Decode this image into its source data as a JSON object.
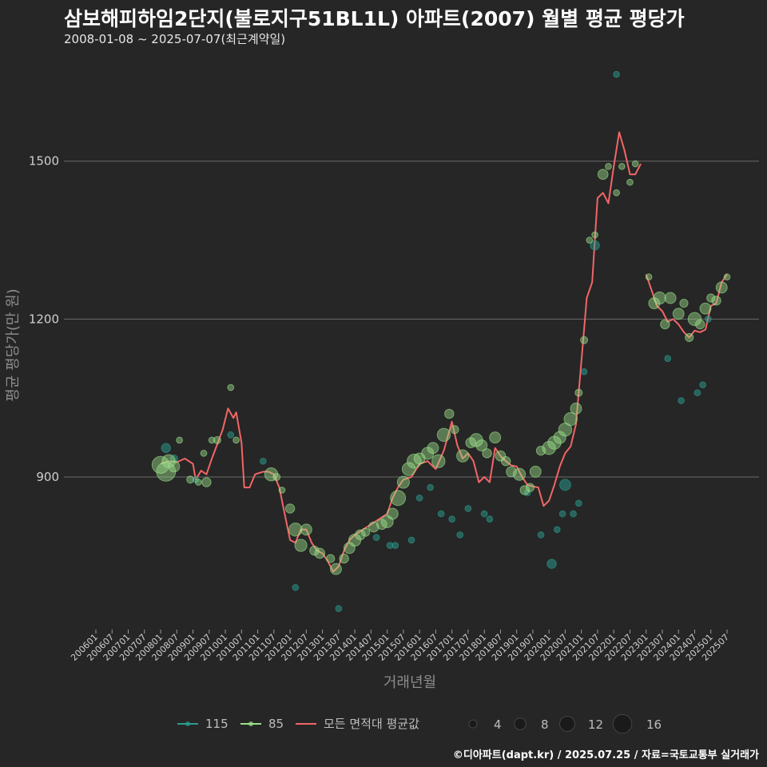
{
  "header": {
    "title": "삼보해피하임2단지(불로지구51BL1L) 아파트(2007) 월별 평균 평당가",
    "subtitle": "2008-01-08 ~ 2025-07-07(최근계약일)"
  },
  "caption": "©디아파트(dapt.kr) / 2025.07.25 / 자료=국토교통부 실거래가",
  "chart_data": {
    "type": "line+scatter",
    "title": "삼보해피하임2단지(불로지구51BL1L) 아파트(2007) 월별 평균 평당가",
    "xlabel": "거래년월",
    "ylabel": "평균 평당가(만 원)",
    "ylim": [
      610,
      1700
    ],
    "yticks": [
      900,
      1200,
      1500
    ],
    "x_start": "2006-01",
    "x_end": "2025-07",
    "xtick_labels": [
      "200601",
      "200607",
      "200701",
      "200707",
      "200801",
      "200807",
      "200901",
      "200907",
      "201001",
      "201007",
      "201101",
      "201107",
      "201201",
      "201207",
      "201301",
      "201307",
      "201401",
      "201407",
      "201501",
      "201507",
      "201601",
      "201607",
      "201701",
      "201707",
      "201801",
      "201807",
      "201901",
      "201907",
      "202001",
      "202007",
      "202101",
      "202107",
      "202201",
      "202207",
      "202301",
      "202307",
      "202401",
      "202407",
      "202501",
      "202507"
    ],
    "colors": {
      "area_115": "#2a9d8f",
      "area_85": "#9be08a",
      "average_line": "#f26666",
      "grid": "#6a6a6a"
    },
    "legend": {
      "series": [
        {
          "key": "115",
          "label": "115"
        },
        {
          "key": "85",
          "label": "85"
        },
        {
          "key": "avg",
          "label": "모든 면적대 평균값"
        }
      ],
      "sizes": [
        {
          "value": 4,
          "label": "4"
        },
        {
          "value": 8,
          "label": "8"
        },
        {
          "value": 12,
          "label": "12"
        },
        {
          "value": 16,
          "label": "16"
        }
      ]
    },
    "average_line": {
      "name": "모든 면적대 평균값",
      "points": [
        [
          "2008-01",
          925
        ],
        [
          "2008-04",
          930
        ],
        [
          "2008-07",
          928
        ],
        [
          "2008-10",
          935
        ],
        [
          "2009-01",
          925
        ],
        [
          "2009-02",
          895
        ],
        [
          "2009-04",
          912
        ],
        [
          "2009-06",
          905
        ],
        [
          "2009-08",
          935
        ],
        [
          "2009-10",
          962
        ],
        [
          "2009-12",
          990
        ],
        [
          "2010-02",
          1030
        ],
        [
          "2010-04",
          1012
        ],
        [
          "2010-05",
          1023
        ],
        [
          "2010-07",
          965
        ],
        [
          "2010-08",
          880
        ],
        [
          "2010-10",
          880
        ],
        [
          "2010-12",
          905
        ],
        [
          "2011-03",
          910
        ],
        [
          "2011-05",
          910
        ],
        [
          "2011-07",
          905
        ],
        [
          "2011-09",
          880
        ],
        [
          "2011-11",
          830
        ],
        [
          "2012-01",
          780
        ],
        [
          "2012-03",
          775
        ],
        [
          "2012-05",
          800
        ],
        [
          "2012-07",
          800
        ],
        [
          "2012-09",
          775
        ],
        [
          "2012-11",
          760
        ],
        [
          "2013-01",
          755
        ],
        [
          "2013-03",
          740
        ],
        [
          "2013-05",
          720
        ],
        [
          "2013-07",
          730
        ],
        [
          "2013-09",
          760
        ],
        [
          "2013-11",
          780
        ],
        [
          "2014-01",
          790
        ],
        [
          "2014-04",
          800
        ],
        [
          "2014-07",
          810
        ],
        [
          "2014-10",
          820
        ],
        [
          "2015-01",
          830
        ],
        [
          "2015-03",
          860
        ],
        [
          "2015-05",
          880
        ],
        [
          "2015-07",
          895
        ],
        [
          "2015-10",
          900
        ],
        [
          "2016-01",
          925
        ],
        [
          "2016-04",
          930
        ],
        [
          "2016-07",
          915
        ],
        [
          "2016-10",
          950
        ],
        [
          "2017-01",
          1005
        ],
        [
          "2017-03",
          960
        ],
        [
          "2017-05",
          935
        ],
        [
          "2017-07",
          945
        ],
        [
          "2017-09",
          930
        ],
        [
          "2017-11",
          890
        ],
        [
          "2018-01",
          900
        ],
        [
          "2018-03",
          890
        ],
        [
          "2018-05",
          955
        ],
        [
          "2018-07",
          940
        ],
        [
          "2018-09",
          930
        ],
        [
          "2018-11",
          922
        ],
        [
          "2019-01",
          920
        ],
        [
          "2019-03",
          900
        ],
        [
          "2019-05",
          885
        ],
        [
          "2019-07",
          882
        ],
        [
          "2019-09",
          880
        ],
        [
          "2019-11",
          845
        ],
        [
          "2020-01",
          855
        ],
        [
          "2020-03",
          885
        ],
        [
          "2020-05",
          920
        ],
        [
          "2020-07",
          945
        ],
        [
          "2020-09",
          958
        ],
        [
          "2020-11",
          1000
        ],
        [
          "2021-01",
          1120
        ],
        [
          "2021-03",
          1240
        ],
        [
          "2021-05",
          1270
        ],
        [
          "2021-07",
          1430
        ],
        [
          "2021-09",
          1440
        ],
        [
          "2021-11",
          1420
        ],
        [
          "2022-01",
          1490
        ],
        [
          "2022-03",
          1555
        ],
        [
          "2022-05",
          1520
        ],
        [
          "2022-07",
          1475
        ],
        [
          "2022-09",
          1475
        ],
        [
          "2022-11",
          1495
        ],
        null,
        [
          "2023-01",
          1285
        ],
        [
          "2023-03",
          1255
        ],
        [
          "2023-05",
          1225
        ],
        [
          "2023-07",
          1215
        ],
        [
          "2023-09",
          1195
        ],
        [
          "2023-11",
          1200
        ],
        [
          "2024-01",
          1190
        ],
        [
          "2024-03",
          1175
        ],
        [
          "2024-05",
          1165
        ],
        [
          "2024-07",
          1178
        ],
        [
          "2024-09",
          1175
        ],
        [
          "2024-11",
          1180
        ],
        [
          "2025-01",
          1225
        ],
        [
          "2025-03",
          1230
        ],
        [
          "2025-05",
          1270
        ],
        [
          "2025-07",
          1285
        ]
      ]
    },
    "series": [
      {
        "name": "85",
        "points": [
          [
            "2008-01",
            923,
            14
          ],
          [
            "2008-03",
            910,
            16
          ],
          [
            "2008-04",
            930,
            10
          ],
          [
            "2008-06",
            920,
            8
          ],
          [
            "2008-08",
            970,
            3
          ],
          [
            "2008-12",
            895,
            4
          ],
          [
            "2009-03",
            890,
            3
          ],
          [
            "2009-05",
            945,
            3
          ],
          [
            "2009-06",
            890,
            6
          ],
          [
            "2009-08",
            970,
            3
          ],
          [
            "2009-10",
            970,
            4
          ],
          [
            "2010-03",
            1070,
            3
          ],
          [
            "2010-05",
            970,
            3
          ],
          [
            "2011-06",
            905,
            10
          ],
          [
            "2011-08",
            900,
            4
          ],
          [
            "2011-10",
            875,
            3
          ],
          [
            "2012-01",
            840,
            6
          ],
          [
            "2012-03",
            800,
            10
          ],
          [
            "2012-05",
            770,
            9
          ],
          [
            "2012-07",
            800,
            8
          ],
          [
            "2012-10",
            760,
            6
          ],
          [
            "2012-12",
            755,
            7
          ],
          [
            "2013-04",
            745,
            5
          ],
          [
            "2013-06",
            725,
            8
          ],
          [
            "2013-09",
            745,
            6
          ],
          [
            "2013-11",
            765,
            8
          ],
          [
            "2014-01",
            780,
            9
          ],
          [
            "2014-03",
            790,
            7
          ],
          [
            "2014-05",
            795,
            5
          ],
          [
            "2014-08",
            805,
            7
          ],
          [
            "2014-11",
            810,
            7
          ],
          [
            "2015-01",
            815,
            9
          ],
          [
            "2015-03",
            830,
            8
          ],
          [
            "2015-05",
            860,
            12
          ],
          [
            "2015-07",
            890,
            9
          ],
          [
            "2015-09",
            915,
            10
          ],
          [
            "2015-11",
            930,
            11
          ],
          [
            "2016-01",
            935,
            8
          ],
          [
            "2016-04",
            945,
            9
          ],
          [
            "2016-06",
            955,
            8
          ],
          [
            "2016-08",
            930,
            10
          ],
          [
            "2016-10",
            980,
            10
          ],
          [
            "2016-12",
            1020,
            6
          ],
          [
            "2017-02",
            990,
            5
          ],
          [
            "2017-05",
            940,
            9
          ],
          [
            "2017-08",
            965,
            7
          ],
          [
            "2017-10",
            970,
            10
          ],
          [
            "2017-12",
            960,
            8
          ],
          [
            "2018-02",
            945,
            6
          ],
          [
            "2018-05",
            975,
            8
          ],
          [
            "2018-07",
            940,
            7
          ],
          [
            "2018-09",
            930,
            6
          ],
          [
            "2018-11",
            910,
            7
          ],
          [
            "2019-02",
            905,
            9
          ],
          [
            "2019-04",
            875,
            6
          ],
          [
            "2019-06",
            880,
            5
          ],
          [
            "2019-08",
            910,
            8
          ],
          [
            "2019-10",
            950,
            6
          ],
          [
            "2020-01",
            955,
            10
          ],
          [
            "2020-03",
            965,
            10
          ],
          [
            "2020-05",
            975,
            9
          ],
          [
            "2020-07",
            990,
            10
          ],
          [
            "2020-09",
            1010,
            10
          ],
          [
            "2020-11",
            1030,
            8
          ],
          [
            "2020-12",
            1060,
            4
          ],
          [
            "2021-02",
            1160,
            4
          ],
          [
            "2021-04",
            1350,
            3
          ],
          [
            "2021-06",
            1360,
            3
          ],
          [
            "2021-09",
            1475,
            7
          ],
          [
            "2021-11",
            1490,
            3
          ],
          [
            "2022-02",
            1440,
            3
          ],
          [
            "2022-04",
            1490,
            3
          ],
          [
            "2022-07",
            1460,
            3
          ],
          [
            "2022-09",
            1495,
            3
          ],
          [
            "2023-02",
            1280,
            3
          ],
          [
            "2023-04",
            1230,
            8
          ],
          [
            "2023-06",
            1240,
            9
          ],
          [
            "2023-08",
            1190,
            6
          ],
          [
            "2023-10",
            1240,
            8
          ],
          [
            "2024-01",
            1210,
            8
          ],
          [
            "2024-03",
            1230,
            5
          ],
          [
            "2024-05",
            1165,
            5
          ],
          [
            "2024-07",
            1200,
            10
          ],
          [
            "2024-09",
            1190,
            6
          ],
          [
            "2024-11",
            1220,
            8
          ],
          [
            "2025-01",
            1240,
            5
          ],
          [
            "2025-03",
            1235,
            6
          ],
          [
            "2025-05",
            1260,
            8
          ],
          [
            "2025-07",
            1280,
            3
          ]
        ]
      },
      {
        "name": "115",
        "points": [
          [
            "2008-03",
            955,
            6
          ],
          [
            "2008-06",
            935,
            4
          ],
          [
            "2009-02",
            895,
            3
          ],
          [
            "2010-03",
            980,
            3
          ],
          [
            "2011-03",
            930,
            3
          ],
          [
            "2012-03",
            690,
            3
          ],
          [
            "2013-07",
            650,
            3
          ],
          [
            "2014-09",
            785,
            3
          ],
          [
            "2015-02",
            770,
            3
          ],
          [
            "2015-04",
            770,
            3
          ],
          [
            "2015-10",
            780,
            3
          ],
          [
            "2016-01",
            860,
            3
          ],
          [
            "2016-05",
            880,
            3
          ],
          [
            "2016-09",
            830,
            3
          ],
          [
            "2017-01",
            820,
            3
          ],
          [
            "2017-04",
            790,
            3
          ],
          [
            "2017-07",
            840,
            3
          ],
          [
            "2018-01",
            830,
            3
          ],
          [
            "2018-03",
            820,
            3
          ],
          [
            "2019-05",
            870,
            3
          ],
          [
            "2019-10",
            790,
            3
          ],
          [
            "2020-02",
            735,
            6
          ],
          [
            "2020-04",
            800,
            3
          ],
          [
            "2020-06",
            830,
            3
          ],
          [
            "2020-07",
            885,
            8
          ],
          [
            "2020-10",
            830,
            3
          ],
          [
            "2020-12",
            850,
            3
          ],
          [
            "2021-02",
            1100,
            3
          ],
          [
            "2021-06",
            1340,
            6
          ],
          [
            "2022-02",
            1665,
            3
          ],
          [
            "2023-09",
            1125,
            3
          ],
          [
            "2024-02",
            1045,
            3
          ],
          [
            "2024-08",
            1060,
            3
          ],
          [
            "2024-10",
            1075,
            3
          ],
          [
            "2024-12",
            1200,
            3
          ]
        ]
      }
    ]
  }
}
